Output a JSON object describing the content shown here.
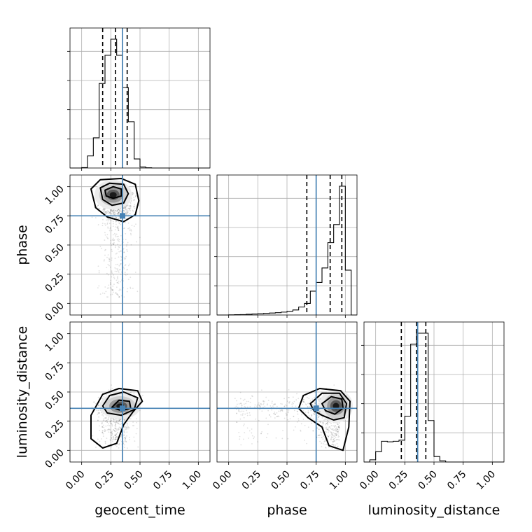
{
  "chart_data": {
    "type": "corner",
    "parameters": [
      "geocent_time",
      "phase",
      "luminosity_distance"
    ],
    "tick_labels": [
      "0.00",
      "0.25",
      "0.50",
      "0.75",
      "1.00"
    ],
    "ranges": {
      "geocent_time": [
        -0.1,
        1.1
      ],
      "phase": [
        -0.1,
        1.1
      ],
      "luminosity_distance": [
        -0.1,
        1.1
      ]
    },
    "truths": {
      "geocent_time": 0.35,
      "phase": 0.75,
      "luminosity_distance": 0.36
    },
    "quantiles": {
      "geocent_time": [
        0.18,
        0.29,
        0.39
      ],
      "phase": [
        0.67,
        0.87,
        0.97
      ],
      "luminosity_distance": [
        0.22,
        0.35,
        0.43
      ]
    },
    "histograms": {
      "geocent_time": {
        "bin_edges": [
          0.0,
          0.05,
          0.1,
          0.15,
          0.2,
          0.25,
          0.3,
          0.35,
          0.4,
          0.45,
          0.5,
          0.55,
          0.6
        ],
        "counts": [
          2,
          60,
          150,
          420,
          560,
          640,
          560,
          400,
          230,
          45,
          5,
          1
        ]
      },
      "phase": {
        "bin_edges": [
          0.0,
          0.05,
          0.1,
          0.15,
          0.2,
          0.25,
          0.3,
          0.35,
          0.4,
          0.45,
          0.5,
          0.55,
          0.6,
          0.65,
          0.7,
          0.75,
          0.8,
          0.85,
          0.9,
          0.95,
          1.0,
          1.05
        ],
        "counts": [
          2,
          4,
          6,
          10,
          14,
          18,
          22,
          27,
          32,
          40,
          50,
          70,
          110,
          160,
          330,
          450,
          650,
          1000,
          1250,
          1780,
          620
        ]
      },
      "luminosity_distance": {
        "bin_edges": [
          -0.05,
          0.0,
          0.05,
          0.1,
          0.15,
          0.2,
          0.25,
          0.3,
          0.35,
          0.4,
          0.45,
          0.5,
          0.55,
          0.6
        ],
        "counts": [
          20,
          95,
          190,
          185,
          190,
          200,
          420,
          1080,
          1180,
          1180,
          380,
          50,
          10
        ]
      }
    },
    "grid": true
  }
}
